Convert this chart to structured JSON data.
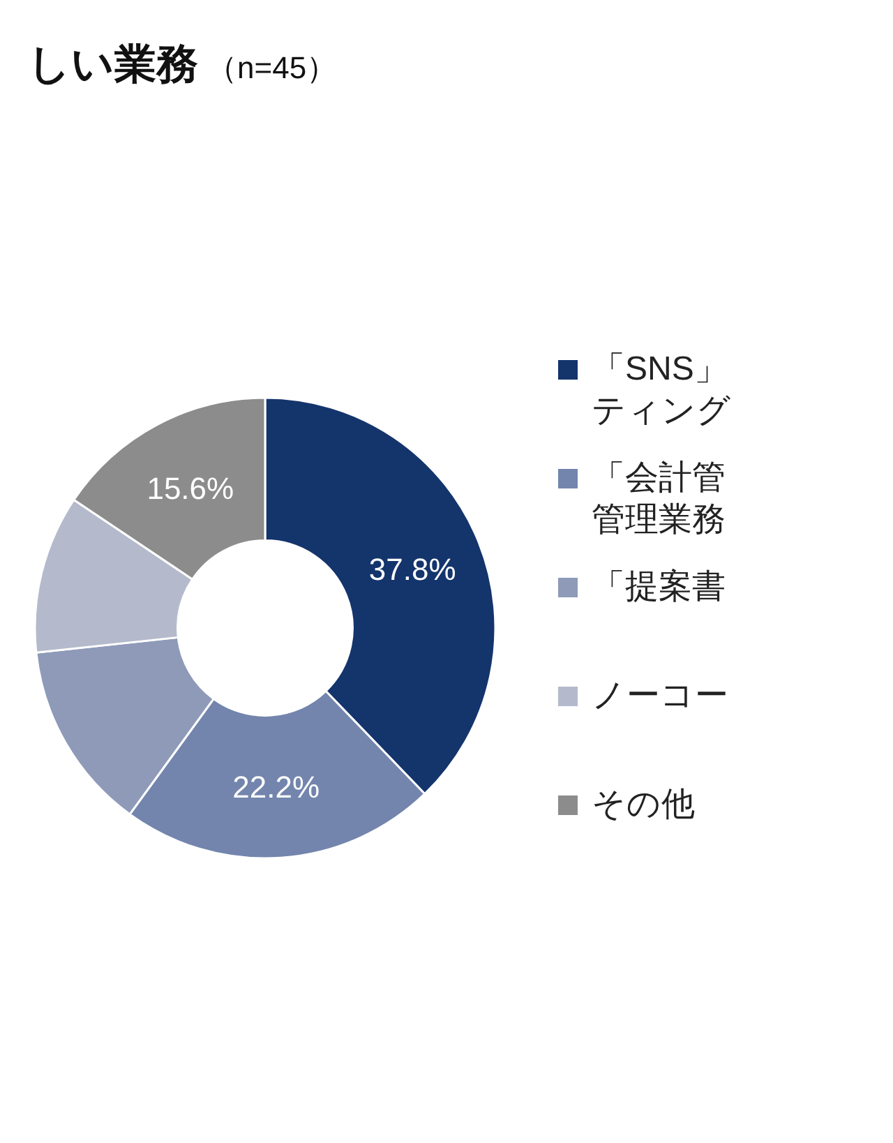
{
  "chart_data": {
    "type": "donut",
    "title": "しい業務",
    "subtitle": "（n=45）",
    "categories": [
      "「SNS」ティング",
      "「会計管管理業務",
      "「提案書",
      "ノーコー",
      "その他"
    ],
    "values": [
      37.8,
      22.2,
      13.3,
      11.1,
      15.6
    ],
    "colors": [
      "#14346c",
      "#7385ad",
      "#8e9ab8",
      "#b4bacb",
      "#8c8c8c"
    ],
    "value_labels": [
      "37.8%",
      "22.2%",
      null,
      null,
      "15.6%"
    ],
    "legend": "right"
  }
}
